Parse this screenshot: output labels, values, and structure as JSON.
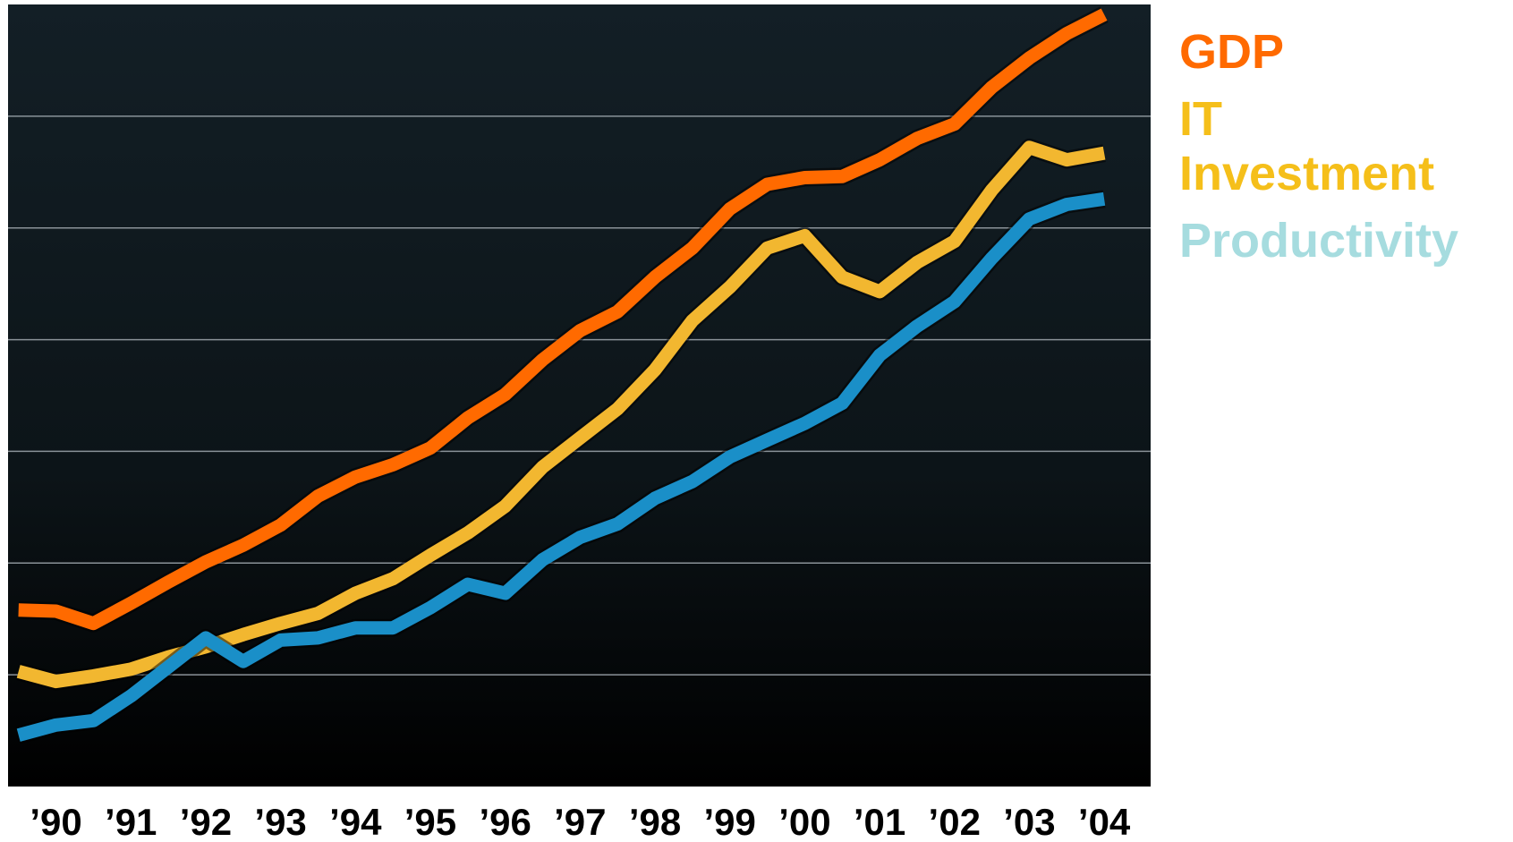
{
  "chart_data": {
    "type": "line",
    "x": [
      1990,
      1990.5,
      1991,
      1991.5,
      1992,
      1992.5,
      1993,
      1993.5,
      1994,
      1994.5,
      1995,
      1995.5,
      1996,
      1996.5,
      1997,
      1997.5,
      1998,
      1998.5,
      1999,
      1999.5,
      2000,
      2000.5,
      2001,
      2001.5,
      2002,
      2002.5,
      2003,
      2003.5,
      2004,
      2004.5
    ],
    "series": [
      {
        "name": "GDP",
        "color": "#ff6a00",
        "label_color": "#ff6a00",
        "values": [
          1.58,
          1.57,
          1.46,
          1.64,
          1.83,
          2.01,
          2.16,
          2.34,
          2.6,
          2.77,
          2.88,
          3.03,
          3.3,
          3.51,
          3.82,
          4.08,
          4.25,
          4.56,
          4.82,
          5.17,
          5.39,
          5.45,
          5.46,
          5.61,
          5.8,
          5.93,
          6.26,
          6.52,
          6.74,
          6.91
        ]
      },
      {
        "name": "IT Investment",
        "color": "#f2b730",
        "label_color": "#f5bf1a",
        "values": [
          1.03,
          0.94,
          0.99,
          1.05,
          1.16,
          1.25,
          1.36,
          1.46,
          1.55,
          1.73,
          1.86,
          2.07,
          2.27,
          2.51,
          2.86,
          3.12,
          3.38,
          3.73,
          4.17,
          4.47,
          4.82,
          4.93,
          4.56,
          4.43,
          4.69,
          4.88,
          5.34,
          5.72,
          5.61,
          5.67
        ]
      },
      {
        "name": "Productivity",
        "color": "#1a8fc8",
        "label_color": "#a6dcdf",
        "values": [
          0.46,
          0.55,
          0.59,
          0.81,
          1.07,
          1.33,
          1.12,
          1.31,
          1.33,
          1.42,
          1.42,
          1.6,
          1.81,
          1.73,
          2.03,
          2.23,
          2.35,
          2.58,
          2.73,
          2.95,
          3.1,
          3.25,
          3.43,
          3.86,
          4.12,
          4.34,
          4.73,
          5.08,
          5.21,
          5.26
        ]
      }
    ],
    "xlim": [
      1989.86,
      2005.12
    ],
    "xticks": [
      {
        "value": 1990.5,
        "label": "’90"
      },
      {
        "value": 1991.5,
        "label": "’91"
      },
      {
        "value": 1992.5,
        "label": "’92"
      },
      {
        "value": 1993.5,
        "label": "’93"
      },
      {
        "value": 1994.5,
        "label": "’94"
      },
      {
        "value": 1995.5,
        "label": "’95"
      },
      {
        "value": 1996.5,
        "label": "’96"
      },
      {
        "value": 1997.5,
        "label": "’97"
      },
      {
        "value": 1998.5,
        "label": "’98"
      },
      {
        "value": 1999.5,
        "label": "’99"
      },
      {
        "value": 2000.5,
        "label": "’00"
      },
      {
        "value": 2001.5,
        "label": "’01"
      },
      {
        "value": 2002.5,
        "label": "’02"
      },
      {
        "value": 2003.5,
        "label": "’03"
      },
      {
        "value": 2004.5,
        "label": "’04"
      }
    ],
    "ylim": [
      0,
      7
    ],
    "yticks": [
      1,
      2,
      3,
      4,
      5,
      6
    ],
    "grid": true
  }
}
